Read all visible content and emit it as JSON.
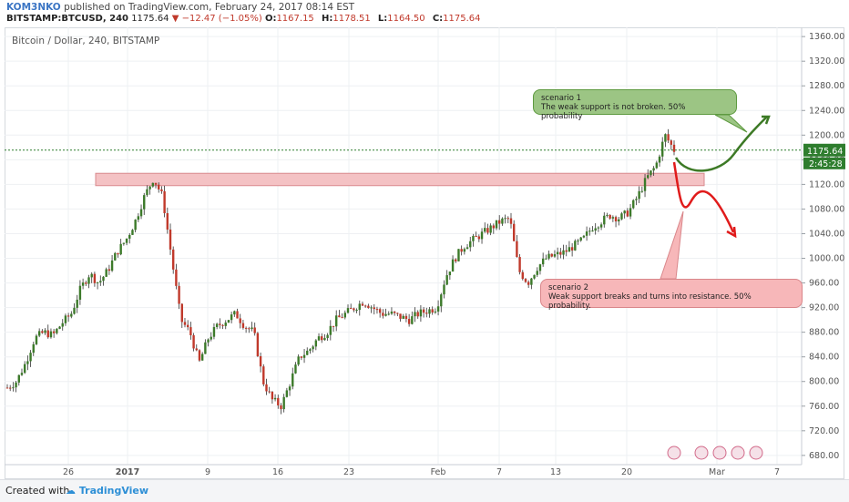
{
  "header": {
    "author": "KOM3NKO",
    "published_text": "published on TradingView.com, February 24, 2017 08:14 EST",
    "symbol": "BITSTAMP:BTCUSD, 240",
    "last_price": "1175.64",
    "change": "▼ −12.47 (−1.05%)",
    "open_label": "O:",
    "open": "1167.15",
    "high_label": "H:",
    "high": "1178.51",
    "low_label": "L:",
    "low": "1164.50",
    "close_label": "C:",
    "close": "1175.64"
  },
  "chart_title": "Bitcoin / Dollar, 240, BITSTAMP",
  "footer": {
    "created_with": "Created with",
    "brand": "TradingView"
  },
  "colors": {
    "up": "#3c7a2a",
    "down": "#c0392b",
    "zone": "#f4c2c4",
    "green_note": "#9cc584",
    "red_note": "#f7b7b9",
    "price_line": "#2e7d2e"
  },
  "annotations": {
    "scenario1": {
      "title": "scenario 1",
      "text": "The weak support is not broken. 50% probability"
    },
    "scenario2": {
      "title": "scenario 2",
      "text": "Weak support breaks and turns into resistance. 50% probability."
    }
  },
  "chart_data": {
    "type": "candlestick",
    "title": "Bitcoin / Dollar, 240, BITSTAMP",
    "ylim": [
      665,
      1375
    ],
    "y_ticks": [
      "1360.00",
      "1320.00",
      "1280.00",
      "1240.00",
      "1200.00",
      "1160.00",
      "1120.00",
      "1080.00",
      "1040.00",
      "1000.00",
      "960.00",
      "920.00",
      "880.00",
      "840.00",
      "800.00",
      "760.00",
      "720.00",
      "680.00"
    ],
    "x_ticks": [
      "26",
      "2017",
      "9",
      "16",
      "23",
      "Feb",
      "7",
      "13",
      "20",
      "Mar",
      "7"
    ],
    "price_label": "1175.64",
    "countdown_label": "2:45:28",
    "resistance_zone": [
      1118,
      1138
    ],
    "close_series": [
      790,
      800,
      830,
      870,
      880,
      875,
      895,
      910,
      950,
      975,
      960,
      980,
      1010,
      1030,
      1060,
      1100,
      1130,
      1100,
      1000,
      900,
      880,
      830,
      870,
      890,
      900,
      910,
      890,
      880,
      800,
      770,
      760,
      800,
      840,
      850,
      870,
      880,
      900,
      910,
      920,
      930,
      920,
      910,
      910,
      905,
      900,
      910,
      915,
      920,
      970,
      1000,
      1020,
      1030,
      1040,
      1050,
      1060,
      1065,
      980,
      960,
      985,
      1000,
      1005,
      1010,
      1020,
      1030,
      1050,
      1060,
      1070,
      1065,
      1075,
      1100,
      1130,
      1150,
      1200,
      1175.64
    ]
  }
}
